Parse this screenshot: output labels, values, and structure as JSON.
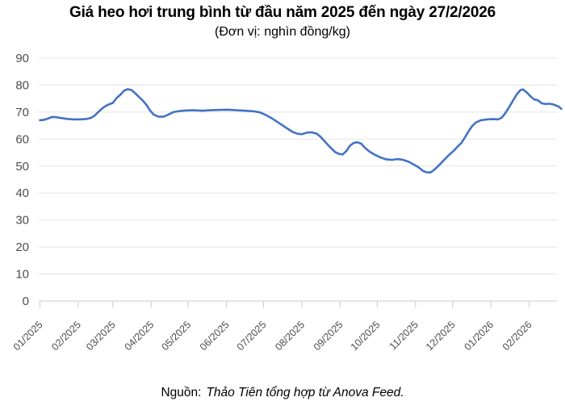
{
  "title": "Giá heo hơi trung bình từ đầu năm 2025 đến ngày 27/2/2026",
  "subtitle": "(Đơn vị: nghìn đồng/kg)",
  "source": {
    "prefix": "Nguồn:",
    "text": "Thảo Tiên tổng hợp từ Anova Feed."
  },
  "chart_data": {
    "type": "line",
    "title": "Giá heo hơi trung bình từ đầu năm 2025 đến ngày 27/2/2026",
    "subtitle": "(Đơn vị: nghìn đồng/kg)",
    "ylabel": "nghìn đồng/kg",
    "xlabel": "",
    "ylim": [
      0,
      90
    ],
    "y_ticks": [
      0,
      10,
      20,
      30,
      40,
      50,
      60,
      70,
      80,
      90
    ],
    "x_tick_labels": [
      "01/2025",
      "02/2025",
      "03/2025",
      "04/2025",
      "05/2025",
      "06/2025",
      "07/2025",
      "08/2025",
      "09/2025",
      "10/2025",
      "11/2025",
      "12/2025",
      "01/2026",
      "02/2026"
    ],
    "x_start_date": "2025-01-01",
    "x_end_date": "2026-02-27",
    "grid": true,
    "legend": "none",
    "line_color": "#4472C4",
    "points": [
      [
        "2025-01-01",
        67.0
      ],
      [
        "2025-01-04",
        67.1
      ],
      [
        "2025-01-08",
        67.7
      ],
      [
        "2025-01-11",
        68.2
      ],
      [
        "2025-01-14",
        68.1
      ],
      [
        "2025-01-18",
        67.8
      ],
      [
        "2025-01-23",
        67.5
      ],
      [
        "2025-01-28",
        67.3
      ],
      [
        "2025-02-02",
        67.3
      ],
      [
        "2025-02-07",
        67.4
      ],
      [
        "2025-02-11",
        67.8
      ],
      [
        "2025-02-14",
        68.6
      ],
      [
        "2025-02-17",
        69.9
      ],
      [
        "2025-02-20",
        71.2
      ],
      [
        "2025-02-23",
        72.2
      ],
      [
        "2025-02-26",
        72.9
      ],
      [
        "2025-03-01",
        73.4
      ],
      [
        "2025-03-04",
        75.2
      ],
      [
        "2025-03-07",
        76.4
      ],
      [
        "2025-03-10",
        77.9
      ],
      [
        "2025-03-13",
        78.5
      ],
      [
        "2025-03-16",
        78.2
      ],
      [
        "2025-03-19",
        77.0
      ],
      [
        "2025-03-22",
        75.7
      ],
      [
        "2025-03-25",
        74.4
      ],
      [
        "2025-03-28",
        72.8
      ],
      [
        "2025-03-31",
        70.7
      ],
      [
        "2025-04-03",
        69.1
      ],
      [
        "2025-04-07",
        68.3
      ],
      [
        "2025-04-11",
        68.3
      ],
      [
        "2025-04-15",
        69.1
      ],
      [
        "2025-04-19",
        70.0
      ],
      [
        "2025-04-24",
        70.4
      ],
      [
        "2025-04-29",
        70.6
      ],
      [
        "2025-05-05",
        70.7
      ],
      [
        "2025-05-12",
        70.5
      ],
      [
        "2025-05-19",
        70.7
      ],
      [
        "2025-05-26",
        70.8
      ],
      [
        "2025-06-02",
        70.9
      ],
      [
        "2025-06-09",
        70.7
      ],
      [
        "2025-06-16",
        70.5
      ],
      [
        "2025-06-23",
        70.3
      ],
      [
        "2025-06-28",
        69.9
      ],
      [
        "2025-07-03",
        68.9
      ],
      [
        "2025-07-08",
        67.6
      ],
      [
        "2025-07-12",
        66.4
      ],
      [
        "2025-07-16",
        65.2
      ],
      [
        "2025-07-20",
        64.0
      ],
      [
        "2025-07-24",
        62.8
      ],
      [
        "2025-07-28",
        62.0
      ],
      [
        "2025-08-01",
        61.8
      ],
      [
        "2025-08-05",
        62.4
      ],
      [
        "2025-08-09",
        62.5
      ],
      [
        "2025-08-13",
        62.0
      ],
      [
        "2025-08-16",
        60.9
      ],
      [
        "2025-08-19",
        59.4
      ],
      [
        "2025-08-22",
        57.9
      ],
      [
        "2025-08-25",
        56.5
      ],
      [
        "2025-08-28",
        55.2
      ],
      [
        "2025-08-31",
        54.5
      ],
      [
        "2025-09-03",
        54.3
      ],
      [
        "2025-09-06",
        55.6
      ],
      [
        "2025-09-09",
        57.6
      ],
      [
        "2025-09-12",
        58.6
      ],
      [
        "2025-09-15",
        58.8
      ],
      [
        "2025-09-18",
        58.3
      ],
      [
        "2025-09-21",
        56.8
      ],
      [
        "2025-09-25",
        55.3
      ],
      [
        "2025-09-29",
        54.2
      ],
      [
        "2025-10-03",
        53.3
      ],
      [
        "2025-10-08",
        52.5
      ],
      [
        "2025-10-13",
        52.3
      ],
      [
        "2025-10-17",
        52.6
      ],
      [
        "2025-10-21",
        52.4
      ],
      [
        "2025-10-26",
        51.7
      ],
      [
        "2025-10-30",
        50.7
      ],
      [
        "2025-11-03",
        49.7
      ],
      [
        "2025-11-07",
        48.2
      ],
      [
        "2025-11-10",
        47.7
      ],
      [
        "2025-11-13",
        47.6
      ],
      [
        "2025-11-16",
        48.6
      ],
      [
        "2025-11-20",
        50.3
      ],
      [
        "2025-11-24",
        52.2
      ],
      [
        "2025-11-28",
        54.1
      ],
      [
        "2025-12-02",
        55.7
      ],
      [
        "2025-12-05",
        57.2
      ],
      [
        "2025-12-08",
        58.5
      ],
      [
        "2025-12-11",
        60.6
      ],
      [
        "2025-12-14",
        62.9
      ],
      [
        "2025-12-17",
        64.9
      ],
      [
        "2025-12-20",
        66.2
      ],
      [
        "2025-12-24",
        67.0
      ],
      [
        "2025-12-29",
        67.3
      ],
      [
        "2026-01-03",
        67.4
      ],
      [
        "2026-01-07",
        67.3
      ],
      [
        "2026-01-10",
        68.0
      ],
      [
        "2026-01-13",
        69.8
      ],
      [
        "2026-01-16",
        72.0
      ],
      [
        "2026-01-19",
        74.3
      ],
      [
        "2026-01-22",
        76.6
      ],
      [
        "2026-01-25",
        78.2
      ],
      [
        "2026-01-27",
        78.4
      ],
      [
        "2026-01-30",
        77.3
      ],
      [
        "2026-02-02",
        75.9
      ],
      [
        "2026-02-05",
        74.7
      ],
      [
        "2026-02-08",
        74.4
      ],
      [
        "2026-02-11",
        73.3
      ],
      [
        "2026-02-14",
        73.0
      ],
      [
        "2026-02-17",
        73.1
      ],
      [
        "2026-02-20",
        72.9
      ],
      [
        "2026-02-23",
        72.4
      ],
      [
        "2026-02-25",
        72.0
      ],
      [
        "2026-02-27",
        71.2
      ]
    ]
  }
}
